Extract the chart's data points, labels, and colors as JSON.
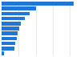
{
  "values": [
    2520,
    1204,
    978,
    802,
    671,
    614,
    553,
    527,
    490,
    454,
    90
  ],
  "bar_color": "#2176d9",
  "background_color": "#ffffff",
  "grid_color": "#e0e0e0",
  "xlim": [
    0,
    2700
  ],
  "figsize": [
    1.0,
    0.71
  ],
  "dpi": 100,
  "bar_height": 0.72
}
